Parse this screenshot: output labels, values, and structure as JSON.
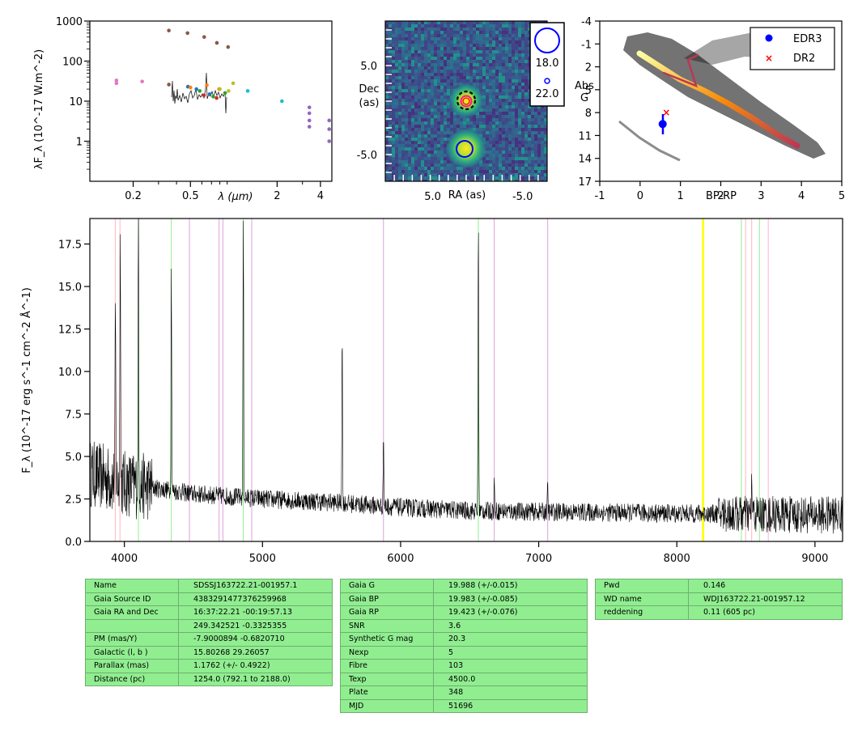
{
  "colors": {
    "spectrum": "#000000",
    "hydrogen_lines": "#90ee90",
    "pink_lines": "#ffb6c1",
    "violet_lines": "#dda0dd",
    "yellow_line": "#ffff00",
    "table_bg": "#90ee90",
    "edr3": "#0000ff",
    "dr2": "#ff0000"
  },
  "chart_data": [
    {
      "type": "scatter",
      "panel": "sed",
      "xlabel": "λ (μm)",
      "ylabel": "λF_λ (10^-17 W.m^-2)",
      "xscale": "log",
      "yscale": "log",
      "xlim": [
        0.1,
        4.8
      ],
      "ylim": [
        0.1,
        1000
      ],
      "x_ticks": [
        "0.2",
        "0.5",
        "2",
        "4"
      ],
      "y_ticks": [
        "1",
        "10",
        "100",
        "1000"
      ],
      "series": [
        {
          "color": "#e377c2",
          "points": [
            [
              0.153,
              28
            ],
            [
              0.153,
              33
            ],
            [
              0.231,
              31
            ]
          ]
        },
        {
          "color": "#8c564b",
          "points": [
            [
              0.354,
              580
            ],
            [
              0.354,
              26
            ],
            [
              0.477,
              500
            ],
            [
              0.623,
              400
            ],
            [
              0.763,
              285
            ],
            [
              0.913,
              225
            ]
          ]
        },
        {
          "color": "#1f77b4",
          "points": [
            [
              0.48,
              23
            ],
            [
              0.55,
              20
            ],
            [
              0.68,
              15
            ]
          ]
        },
        {
          "color": "#ff7f0e",
          "points": [
            [
              0.5,
              22
            ],
            [
              0.65,
              25
            ],
            [
              0.79,
              20
            ]
          ]
        },
        {
          "color": "#2ca02c",
          "points": [
            [
              0.58,
              18
            ],
            [
              0.72,
              13
            ],
            [
              0.87,
              16
            ]
          ]
        },
        {
          "color": "#d62728",
          "points": [
            [
              0.62,
              14
            ],
            [
              0.76,
              12
            ]
          ]
        },
        {
          "color": "#bcbd22",
          "points": [
            [
              0.8,
              20
            ],
            [
              0.92,
              18
            ],
            [
              0.99,
              28
            ]
          ]
        },
        {
          "color": "#17becf",
          "points": [
            [
              1.25,
              18
            ],
            [
              2.16,
              10
            ]
          ]
        },
        {
          "color": "#9467bd",
          "points": [
            [
              3.35,
              7
            ],
            [
              3.35,
              5
            ],
            [
              3.35,
              3.3
            ],
            [
              3.35,
              2.3
            ],
            [
              4.6,
              3.3
            ],
            [
              4.6,
              2
            ],
            [
              4.6,
              1
            ]
          ]
        }
      ]
    },
    {
      "type": "heatmap",
      "panel": "image",
      "xlabel": "RA (as)",
      "ylabel": "Dec (as)",
      "xlim": [
        10,
        -8
      ],
      "ylim": [
        -8,
        10
      ],
      "x_ticks": [
        "5.0",
        "-5.0"
      ],
      "y_ticks": [
        "5.0",
        "-5.0"
      ],
      "sources": [
        {
          "ra": 0.3,
          "dec": 0.0,
          "mag": 18.0
        },
        {
          "ra": 0.3,
          "dec": -4.8,
          "mag": 18.0
        }
      ],
      "legend": [
        "18.0",
        "22.0"
      ]
    },
    {
      "type": "scatter",
      "panel": "hr",
      "xlabel": "BP-RP",
      "ylabel": "Abs G",
      "xlim": [
        -1,
        5
      ],
      "ylim": [
        17,
        -4
      ],
      "x_ticks": [
        "-1",
        "0",
        "1",
        "2",
        "3",
        "4",
        "5"
      ],
      "y_ticks": [
        "-4",
        "-1",
        "2",
        "5",
        "8",
        "11",
        "14",
        "17"
      ],
      "legend": [
        "EDR3",
        "DR2"
      ],
      "series": [
        {
          "name": "EDR3",
          "color": "#0000ff",
          "points": [
            [
              0.56,
              9.5
            ]
          ]
        },
        {
          "name": "DR2",
          "color": "#ff0000",
          "points": [
            [
              0.65,
              8.0
            ]
          ]
        }
      ]
    },
    {
      "type": "line",
      "panel": "spectrum",
      "xlabel": "",
      "ylabel": "F_λ (10^-17 erg s^-1 cm^-2 Å^-1)",
      "xlim": [
        3750,
        9200
      ],
      "ylim": [
        0,
        19
      ],
      "x_ticks": [
        "4000",
        "5000",
        "6000",
        "7000",
        "8000",
        "9000"
      ],
      "y_ticks": [
        "0.0",
        "2.5",
        "5.0",
        "7.5",
        "10.0",
        "12.5",
        "15.0",
        "17.5"
      ],
      "continuum": [
        [
          3750,
          4.0
        ],
        [
          4000,
          3.4
        ],
        [
          4500,
          2.8
        ],
        [
          5000,
          2.5
        ],
        [
          5500,
          2.3
        ],
        [
          6000,
          2.0
        ],
        [
          6500,
          1.8
        ],
        [
          7000,
          1.75
        ],
        [
          7500,
          1.7
        ],
        [
          8000,
          1.65
        ],
        [
          8500,
          1.6
        ],
        [
          9200,
          1.55
        ]
      ],
      "emission_lines": [
        [
          3935,
          14
        ],
        [
          3970,
          20
        ],
        [
          4102,
          19
        ],
        [
          4340,
          16
        ],
        [
          4861,
          19
        ],
        [
          5577,
          12.2
        ],
        [
          5876,
          6.4
        ],
        [
          6563,
          19
        ],
        [
          6678,
          3.5
        ],
        [
          7065,
          3.2
        ],
        [
          8542,
          3.5
        ]
      ],
      "hydrogen_lines": [
        4102,
        4340,
        4861,
        6563,
        8467,
        8598
      ],
      "pink_lines": [
        3934,
        3968,
        8498,
        8542,
        8662
      ],
      "violet_lines": [
        4471,
        4686,
        4713,
        4922,
        5876,
        6678,
        7065
      ],
      "yellow_lines": [
        8190
      ]
    }
  ],
  "table1": [
    [
      "Name",
      "SDSSJ163722.21-001957.1"
    ],
    [
      "Gaia Source ID",
      "4383291477376259968"
    ],
    [
      "Gaia RA and Dec",
      "16:37:22.21    -00:19:57.13"
    ],
    [
      "",
      "249.342521    -0.3325355"
    ],
    [
      "PM (mas/Y)",
      "-7.9000894    -0.6820710"
    ],
    [
      "Galactic (l, b )",
      "15.80268    29.26057"
    ],
    [
      "Parallax (mas)",
      "1.1762 (+/- 0.4922)"
    ],
    [
      "Distance (pc)",
      "1254.0 (792.1 to 2188.0)"
    ]
  ],
  "table2": [
    [
      "Gaia G",
      "19.988 (+/-0.015)"
    ],
    [
      "Gaia BP",
      "19.983 (+/-0.085)"
    ],
    [
      "Gaia RP",
      "19.423 (+/-0.076)"
    ],
    [
      "SNR",
      "3.6"
    ],
    [
      "Synthetic G mag",
      "20.3"
    ],
    [
      "Nexp",
      "5"
    ],
    [
      "Fibre",
      "103"
    ],
    [
      "Texp",
      "4500.0"
    ],
    [
      "Plate",
      "348"
    ],
    [
      "MJD",
      "51696"
    ]
  ],
  "table3": [
    [
      "Pwd",
      "0.146"
    ],
    [
      "WD name",
      "WDJ163722.21-001957.12"
    ],
    [
      "reddening",
      "0.11 (605 pc)"
    ]
  ]
}
